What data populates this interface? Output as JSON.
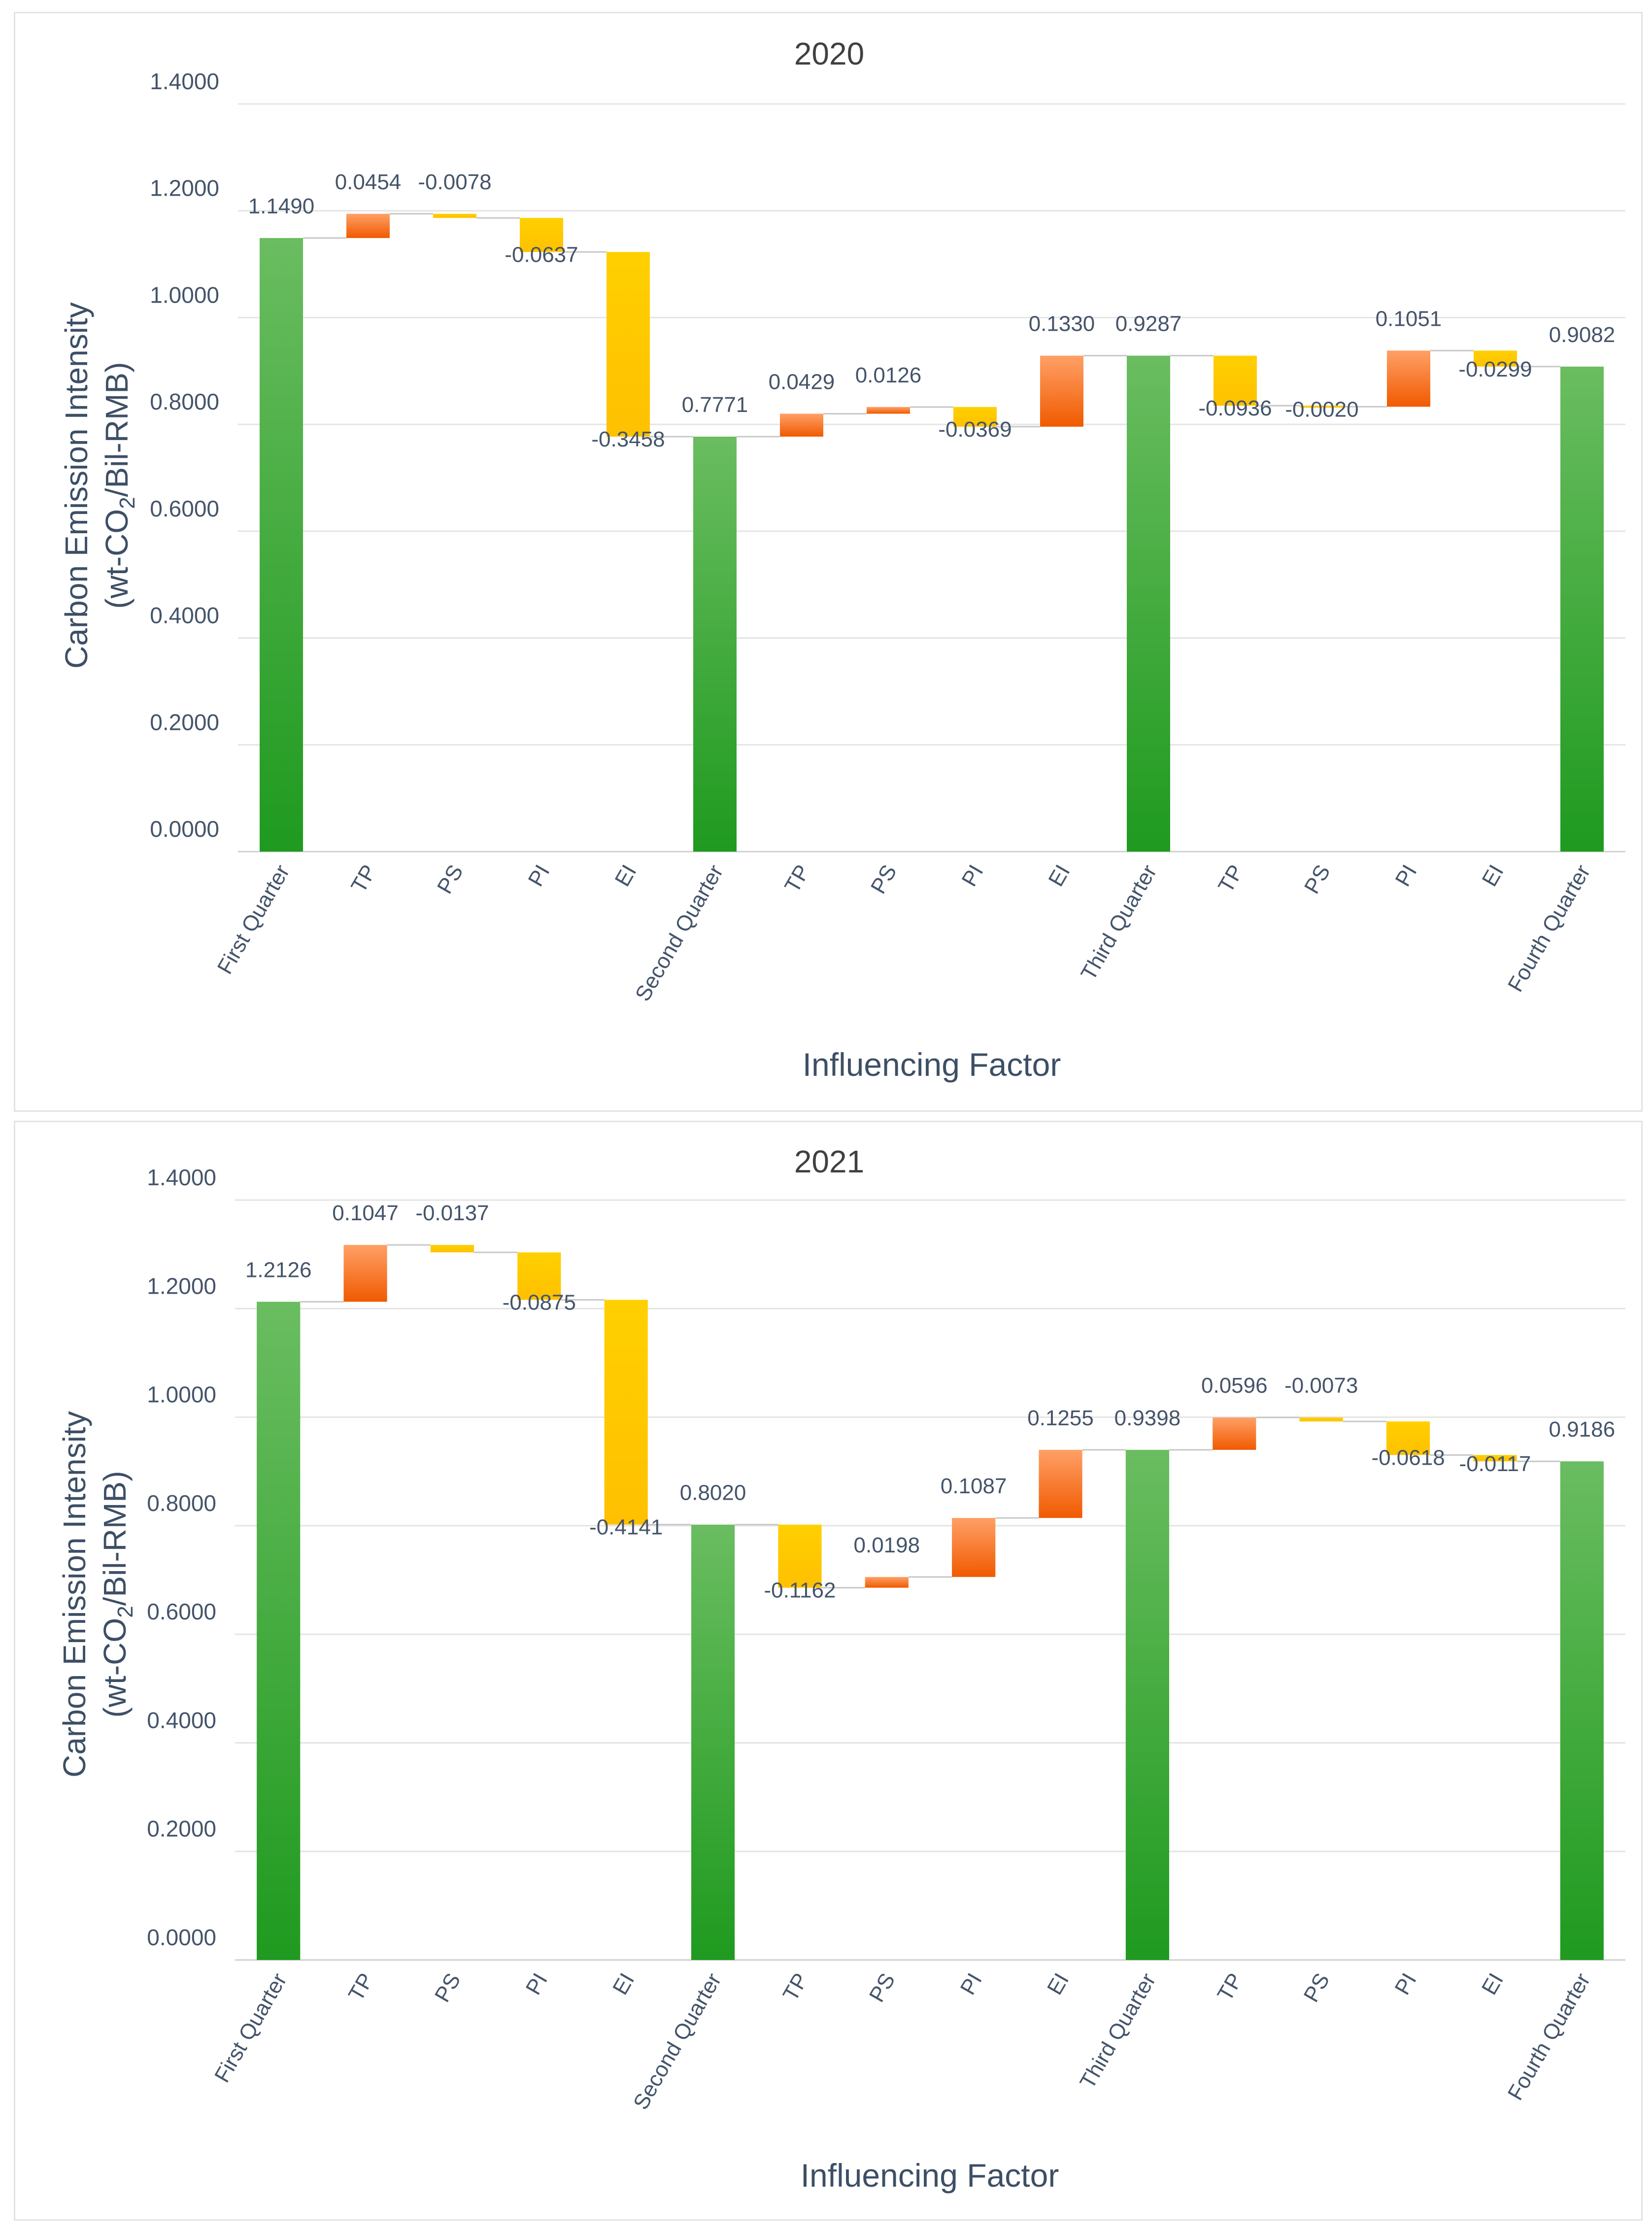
{
  "colors": {
    "total_top": "#6abd60",
    "total_bottom": "#1f9a1f",
    "increase_top": "#ffa066",
    "increase_bottom": "#f05a00",
    "decrease_top": "#ffd000",
    "decrease_bottom": "#ffc000"
  },
  "chart_data": [
    {
      "type": "waterfall",
      "title": "2020",
      "xlabel": "Influencing Factor",
      "ylabel_line1": "Carbon Emission Intensity",
      "ylabel_line2_pre": "(wt-CO",
      "ylabel_line2_sub": "2",
      "ylabel_line2_post": "/Bil-RMB)",
      "ylim": [
        0,
        1.4
      ],
      "yticks": [
        "0.0000",
        "0.2000",
        "0.4000",
        "0.6000",
        "0.8000",
        "1.0000",
        "1.2000",
        "1.4000"
      ],
      "categories": [
        "First Quarter",
        "TP",
        "PS",
        "PI",
        "EI",
        "Second Quarter",
        "TP",
        "PS",
        "PI",
        "EI",
        "Third Quarter",
        "TP",
        "PS",
        "PI",
        "EI",
        "Fourth Quarter"
      ],
      "kinds": [
        "total",
        "delta",
        "delta",
        "delta",
        "delta",
        "total",
        "delta",
        "delta",
        "delta",
        "delta",
        "total",
        "delta",
        "delta",
        "delta",
        "delta",
        "total"
      ],
      "values": [
        1.149,
        0.0454,
        -0.0078,
        -0.0637,
        -0.3458,
        0.7771,
        0.0429,
        0.0126,
        -0.0369,
        0.133,
        0.9287,
        -0.0936,
        -0.002,
        0.1051,
        -0.0299,
        0.9082
      ],
      "labels": [
        "1.1490",
        "0.0454",
        "-0.0078",
        "-0.0637",
        "-0.3458",
        "0.7771",
        "0.0429",
        "0.0126",
        "-0.0369",
        "0.1330",
        "0.9287",
        "-0.0936",
        "-0.0020",
        "0.1051",
        "-0.0299",
        "0.9082"
      ],
      "label_pos": [
        "top",
        "top",
        "top",
        "bottom",
        "bottom",
        "top",
        "top",
        "top",
        "bottom",
        "top",
        "top",
        "bottom",
        "bottom",
        "top",
        "bottom",
        "top"
      ]
    },
    {
      "type": "waterfall",
      "title": "2021",
      "xlabel": "Influencing Factor",
      "ylabel_line1": "Carbon Emission Intensity",
      "ylabel_line2_pre": "(wt-CO",
      "ylabel_line2_sub": "2",
      "ylabel_line2_post": "/Bil-RMB)",
      "ylim": [
        0,
        1.4
      ],
      "yticks": [
        "0.0000",
        "0.2000",
        "0.4000",
        "0.6000",
        "0.8000",
        "1.0000",
        "1.2000",
        "1.4000"
      ],
      "categories": [
        "First Quarter",
        "TP",
        "PS",
        "PI",
        "EI",
        "Second Quarter",
        "TP",
        "PS",
        "PI",
        "EI",
        "Third Quarter",
        "TP",
        "PS",
        "PI",
        "EI",
        "Fourth Quarter"
      ],
      "kinds": [
        "total",
        "delta",
        "delta",
        "delta",
        "delta",
        "total",
        "delta",
        "delta",
        "delta",
        "delta",
        "total",
        "delta",
        "delta",
        "delta",
        "delta",
        "total"
      ],
      "values": [
        1.2126,
        0.1047,
        -0.0137,
        -0.0875,
        -0.4141,
        0.802,
        -0.1162,
        0.0198,
        0.1087,
        0.1255,
        0.9398,
        0.0596,
        -0.0073,
        -0.0618,
        -0.0117,
        0.9186
      ],
      "labels": [
        "1.2126",
        "0.1047",
        "-0.0137",
        "-0.0875",
        "-0.4141",
        "0.8020",
        "-0.1162",
        "0.0198",
        "0.1087",
        "0.1255",
        "0.9398",
        "0.0596",
        "-0.0073",
        "-0.0618",
        "-0.0117",
        "0.9186"
      ],
      "label_pos": [
        "top",
        "top",
        "top",
        "bottom",
        "bottom",
        "top",
        "bottom",
        "top",
        "top",
        "top",
        "top",
        "top",
        "top",
        "bottom",
        "bottom",
        "top"
      ]
    }
  ]
}
